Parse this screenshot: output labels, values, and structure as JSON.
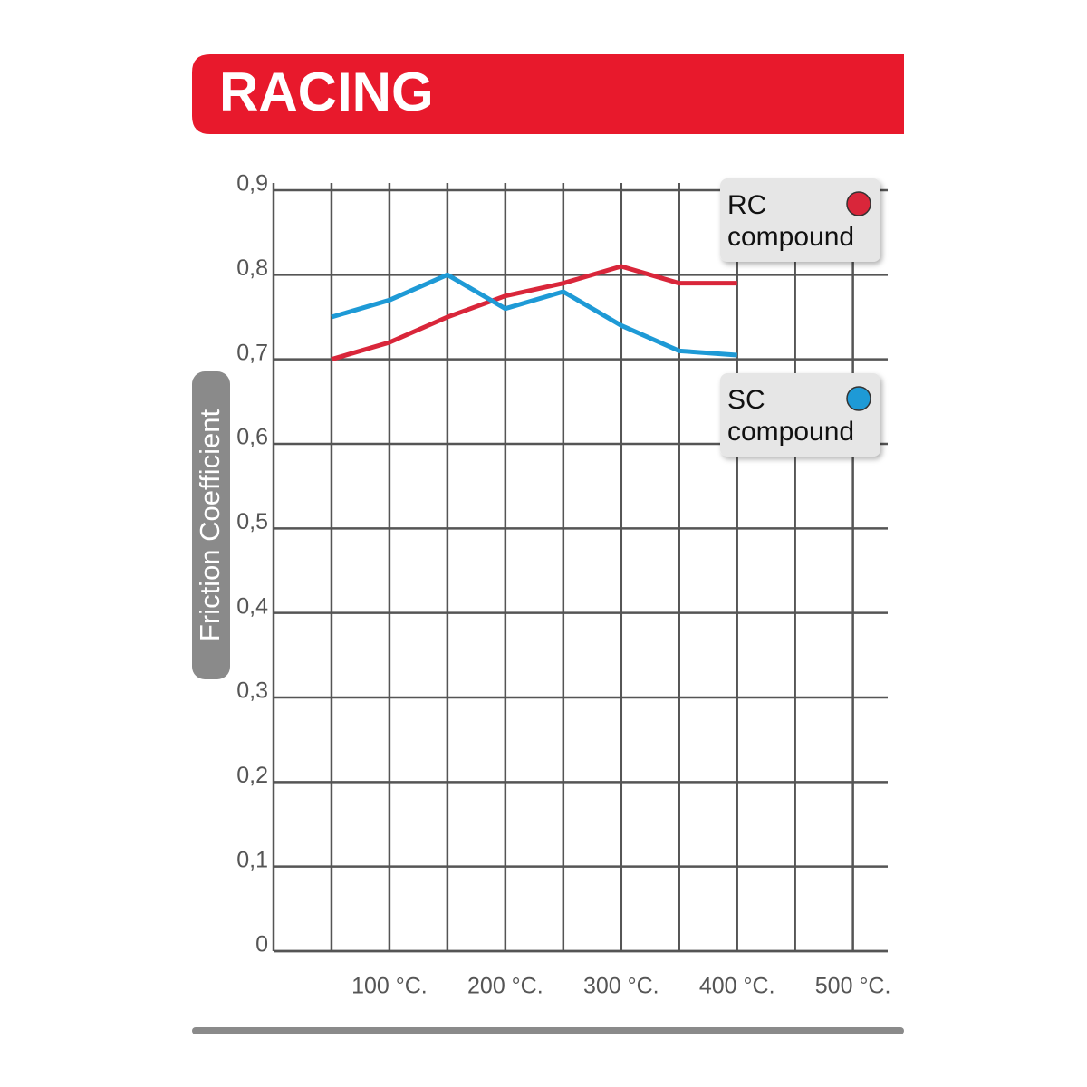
{
  "chart_data": {
    "type": "line",
    "title": "RACING",
    "y_label": "Friction Coefficient",
    "x": [
      50,
      100,
      150,
      200,
      250,
      300,
      350,
      400
    ],
    "series": [
      {
        "name": "RC compound",
        "color": "#d9263a",
        "values": [
          0.7,
          0.72,
          0.75,
          0.775,
          0.79,
          0.81,
          0.79,
          0.79
        ]
      },
      {
        "name": "SC compound",
        "color": "#1e9ad6",
        "values": [
          0.75,
          0.77,
          0.8,
          0.76,
          0.78,
          0.74,
          0.71,
          0.705
        ]
      }
    ],
    "xlim": [
      0,
      530
    ],
    "xticks": [
      {
        "value": 50,
        "label": null
      },
      {
        "value": 100,
        "label": "100 °C."
      },
      {
        "value": 150,
        "label": null
      },
      {
        "value": 200,
        "label": "200 °C."
      },
      {
        "value": 250,
        "label": null
      },
      {
        "value": 300,
        "label": "300 °C."
      },
      {
        "value": 350,
        "label": null
      },
      {
        "value": 400,
        "label": "400 °C."
      },
      {
        "value": 450,
        "label": null
      },
      {
        "value": 500,
        "label": "500 °C."
      }
    ],
    "ylim": [
      0,
      0.9
    ],
    "yticks": [
      0,
      {
        "value": 0.1,
        "label": "0,1"
      },
      {
        "value": 0.2,
        "label": "0,2"
      },
      {
        "value": 0.3,
        "label": "0,3"
      },
      {
        "value": 0.4,
        "label": "0,4"
      },
      {
        "value": 0.5,
        "label": "0,5"
      },
      {
        "value": 0.6,
        "label": "0,6"
      },
      {
        "value": 0.7,
        "label": "0,7"
      },
      {
        "value": 0.8,
        "label": "0,8"
      },
      {
        "value": 0.9,
        "label": "0,9"
      }
    ],
    "grid": true
  }
}
